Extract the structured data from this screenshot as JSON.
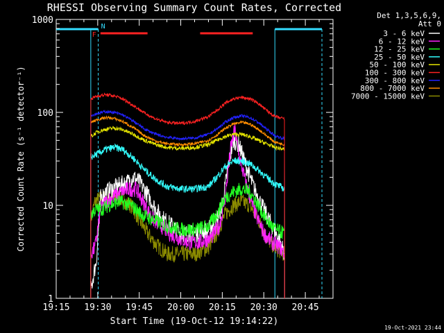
{
  "chart_data": {
    "type": "line",
    "title": "RHESSI Observing Summary Count Rates, Corrected",
    "xlabel": "Start Time (19-Oct-12 19:14:22)",
    "ylabel": "Corrected Count Rate (s⁻¹ detector⁻¹)",
    "y_scale": "log",
    "ylim": [
      1,
      1000
    ],
    "xlim_minutes": [
      0,
      100
    ],
    "x_origin": "19:15",
    "x_ticks": [
      {
        "label": "19:15",
        "minute": 0
      },
      {
        "label": "19:30",
        "minute": 15
      },
      {
        "label": "19:45",
        "minute": 30
      },
      {
        "label": "20:00",
        "minute": 45
      },
      {
        "label": "20:15",
        "minute": 60
      },
      {
        "label": "20:30",
        "minute": 75
      },
      {
        "label": "20:45",
        "minute": 90
      }
    ],
    "y_ticks": [
      {
        "label": "1",
        "value": 1
      },
      {
        "label": "10",
        "value": 10
      },
      {
        "label": "100",
        "value": 100
      },
      {
        "label": "1000",
        "value": 1000
      }
    ],
    "legend_header": [
      "Det 1,3,5,6,9,",
      "Att 0"
    ],
    "legend_placement": "right",
    "series": [
      {
        "name": "3 - 6 keV",
        "color": "#ffffff",
        "noise": 0.22,
        "x": [
          12.5,
          13.5,
          14.5,
          16,
          18,
          22,
          26,
          28,
          30,
          33,
          36,
          39,
          42,
          45,
          48,
          51,
          55,
          58,
          60,
          62,
          64,
          66,
          68,
          70,
          72,
          75,
          78,
          81,
          82.5
        ],
        "y": [
          1.2,
          1.8,
          2.5,
          12,
          14,
          16,
          18,
          20,
          18,
          13,
          9,
          7,
          6,
          5,
          5,
          5,
          5.5,
          7,
          10,
          25,
          50,
          45,
          30,
          20,
          14,
          9,
          6,
          4,
          3
        ]
      },
      {
        "name": "6 - 12 keV",
        "color": "#ff22ff",
        "noise": 0.2,
        "x": [
          12.5,
          14,
          16,
          18,
          22,
          26,
          29,
          32,
          35,
          38,
          41,
          44,
          48,
          52,
          56,
          59,
          61,
          63,
          64.5,
          66,
          68,
          70,
          72,
          75,
          78,
          81,
          82.5
        ],
        "y": [
          3,
          3.5,
          9,
          11,
          13,
          15,
          15,
          10,
          7,
          6,
          5,
          4.5,
          4,
          4,
          4.5,
          6,
          12,
          40,
          65,
          35,
          20,
          12,
          8,
          5,
          4,
          3.5,
          3
        ]
      },
      {
        "name": "12 - 25 keV",
        "color": "#22ff22",
        "noise": 0.18,
        "x": [
          12.5,
          14,
          16,
          19,
          23,
          27,
          31,
          35,
          40,
          45,
          50,
          55,
          58,
          61,
          64,
          67,
          70,
          73,
          76,
          79,
          82.5
        ],
        "y": [
          8,
          9,
          9,
          10,
          11,
          10,
          8,
          7,
          6,
          5.5,
          5.5,
          6,
          8,
          12,
          14,
          15,
          14,
          10,
          7,
          5.5,
          5
        ]
      },
      {
        "name": "25 - 50 keV",
        "color": "#33ffff",
        "noise": 0.09,
        "x": [
          12.5,
          15,
          18,
          21,
          24,
          28,
          32,
          36,
          40,
          45,
          50,
          55,
          58,
          61,
          64,
          67,
          70,
          73,
          76,
          79,
          82.5
        ],
        "y": [
          33,
          36,
          40,
          42,
          40,
          32,
          24,
          19,
          16,
          15,
          15,
          16,
          20,
          26,
          30,
          30,
          28,
          24,
          20,
          17,
          15
        ]
      },
      {
        "name": "50 - 100 keV",
        "color": "#e6e600",
        "noise": 0.05,
        "x": [
          12.5,
          15,
          18,
          21,
          24,
          28,
          32,
          36,
          40,
          45,
          50,
          55,
          58,
          61,
          64,
          67,
          70,
          73,
          76,
          79,
          82.5
        ],
        "y": [
          55,
          62,
          66,
          68,
          65,
          58,
          50,
          45,
          42,
          41,
          42,
          45,
          50,
          55,
          58,
          58,
          55,
          50,
          46,
          42,
          40
        ]
      },
      {
        "name": "100 - 300 keV",
        "color": "#ff2222",
        "noise": 0.04,
        "x": [
          12.5,
          15,
          18,
          21,
          24,
          28,
          32,
          36,
          40,
          45,
          50,
          55,
          58,
          61,
          64,
          67,
          70,
          73,
          76,
          79,
          82.5
        ],
        "y": [
          140,
          150,
          155,
          150,
          140,
          118,
          98,
          85,
          78,
          76,
          80,
          90,
          105,
          125,
          140,
          145,
          140,
          125,
          105,
          90,
          85
        ]
      },
      {
        "name": "300 - 800 keV",
        "color": "#2222ff",
        "noise": 0.035,
        "x": [
          12.5,
          15,
          18,
          21,
          24,
          28,
          32,
          36,
          40,
          45,
          50,
          55,
          58,
          61,
          64,
          67,
          70,
          73,
          76,
          79,
          82.5
        ],
        "y": [
          92,
          98,
          102,
          100,
          94,
          80,
          66,
          58,
          54,
          52,
          53,
          58,
          66,
          78,
          88,
          92,
          88,
          78,
          66,
          56,
          52
        ]
      },
      {
        "name": "800 - 7000 keV",
        "color": "#ff8c00",
        "noise": 0.035,
        "x": [
          12.5,
          15,
          18,
          21,
          24,
          28,
          32,
          36,
          40,
          45,
          50,
          55,
          58,
          61,
          64,
          67,
          70,
          73,
          76,
          79,
          82.5
        ],
        "y": [
          78,
          84,
          88,
          86,
          80,
          68,
          56,
          49,
          46,
          45,
          46,
          50,
          57,
          67,
          75,
          78,
          75,
          66,
          56,
          48,
          45
        ]
      },
      {
        "name": "7000 - 15000 keV",
        "color": "#8b8b00",
        "noise": 0.2,
        "x": [
          12.5,
          14,
          16,
          19,
          23,
          27,
          30,
          33,
          36,
          40,
          45,
          50,
          55,
          58,
          61,
          64,
          67,
          70,
          73,
          76,
          79,
          82.5
        ],
        "y": [
          7,
          11,
          12,
          12,
          12,
          10,
          7,
          5,
          3.8,
          3,
          3,
          3,
          3.5,
          5,
          8,
          10,
          11,
          10,
          7,
          4.5,
          3.5,
          3
        ]
      }
    ],
    "annotations": {
      "flare_flag_label": "F",
      "night_flag_label": "N",
      "flare_intervals": [
        [
          16,
          33
        ],
        [
          52,
          71
        ]
      ],
      "night_intervals": [
        [
          0,
          15.2
        ],
        [
          79,
          96
        ]
      ],
      "night_markers_minute": [
        12.5,
        15.2,
        79,
        96
      ]
    }
  },
  "footer": {
    "timestamp": "19-Oct-2021 23:44"
  },
  "colors": {
    "background": "#000000",
    "axes": "#ffffff",
    "flare_bar": "#ff2222",
    "night_bar": "#33ddff"
  }
}
